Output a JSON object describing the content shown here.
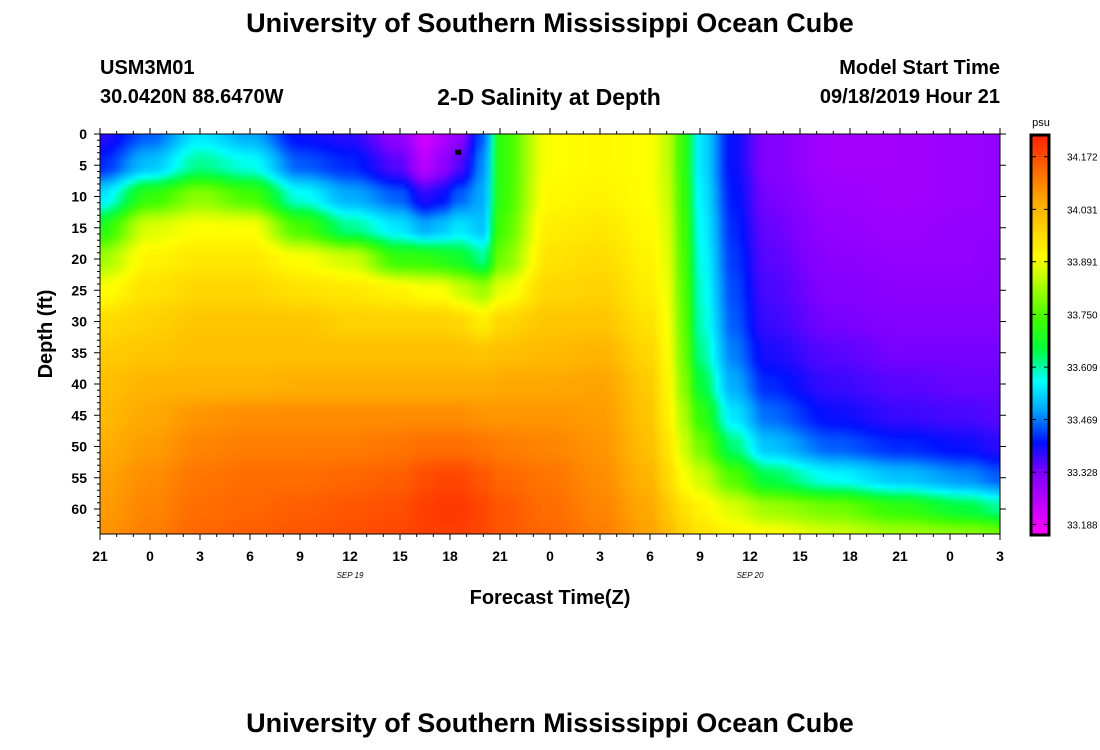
{
  "page": {
    "title_top": "University of Southern Mississippi Ocean Cube",
    "title_bottom": "University of Southern Mississippi Ocean Cube",
    "station_id": "USM3M01",
    "coordinates": "30.0420N 88.6470W",
    "plot_title": "2-D Salinity at Depth",
    "model_start_label": "Model Start Time",
    "model_start_value": "09/18/2019 Hour 21"
  },
  "chart_data": {
    "type": "heatmap",
    "title": "2-D Salinity at Depth",
    "xlabel": "Forecast Time(Z)",
    "ylabel": "Depth (ft)",
    "x_tick_labels": [
      "21",
      "0",
      "3",
      "6",
      "9",
      "12",
      "15",
      "18",
      "21",
      "0",
      "3",
      "6",
      "9",
      "12",
      "15",
      "18",
      "21",
      "0",
      "3"
    ],
    "x_hours_range": [
      0,
      54
    ],
    "date_labels": [
      {
        "text": "SEP 19",
        "hour": 15
      },
      {
        "text": "SEP 20",
        "hour": 39
      }
    ],
    "y_tick_labels": [
      "0",
      "5",
      "10",
      "15",
      "20",
      "25",
      "30",
      "35",
      "40",
      "45",
      "50",
      "55",
      "60"
    ],
    "y_range_ft": [
      0,
      64
    ],
    "colorbar": {
      "unit": "psu",
      "tick_labels": [
        "34.172",
        "34.031",
        "33.891",
        "33.750",
        "33.609",
        "33.469",
        "33.328",
        "33.188"
      ],
      "range": [
        33.16,
        34.23
      ],
      "colors": [
        "#ff00ff",
        "#c000ff",
        "#8000ff",
        "#0010ff",
        "#00a0ff",
        "#00ffff",
        "#00ff40",
        "#40ff00",
        "#a0ff00",
        "#ffff00",
        "#ffd000",
        "#ffa000",
        "#ff6000",
        "#ff2000"
      ]
    },
    "marker": {
      "hour": 21.5,
      "depth_ft": 3
    },
    "profiles": {
      "hours": [
        0,
        3,
        6,
        9,
        12,
        15,
        18,
        19.5,
        20.5,
        21.5,
        23,
        24,
        27,
        30,
        33,
        34,
        35,
        36,
        38,
        40,
        44,
        48,
        52,
        54
      ],
      "depth_nodes": [
        0,
        5,
        10,
        15,
        20,
        25,
        30,
        35,
        40,
        45,
        50,
        55,
        60,
        64
      ],
      "salinity": [
        [
          33.38,
          33.42,
          33.55,
          33.7,
          33.82,
          33.9,
          33.96,
          33.99,
          34.01,
          34.02,
          34.04,
          34.06,
          34.07,
          34.08
        ],
        [
          33.45,
          33.52,
          33.72,
          33.87,
          33.92,
          33.95,
          33.98,
          34.0,
          34.03,
          34.05,
          34.07,
          34.09,
          34.1,
          34.11
        ],
        [
          33.55,
          33.62,
          33.8,
          33.9,
          33.94,
          33.97,
          34.0,
          34.01,
          34.03,
          34.08,
          34.1,
          34.12,
          34.13,
          34.14
        ],
        [
          33.5,
          33.58,
          33.74,
          33.9,
          33.94,
          33.97,
          34.0,
          34.01,
          34.03,
          34.09,
          34.11,
          34.13,
          34.14,
          34.15
        ],
        [
          33.4,
          33.45,
          33.58,
          33.74,
          33.9,
          33.95,
          34.0,
          34.01,
          34.04,
          34.09,
          34.11,
          34.13,
          34.15,
          34.16
        ],
        [
          33.38,
          33.42,
          33.5,
          33.62,
          33.86,
          33.94,
          33.98,
          34.01,
          34.04,
          34.09,
          34.11,
          34.14,
          34.16,
          34.17
        ],
        [
          33.3,
          33.35,
          33.45,
          33.55,
          33.72,
          33.92,
          33.98,
          34.01,
          34.04,
          34.09,
          34.12,
          34.15,
          34.17,
          34.18
        ],
        [
          33.22,
          33.25,
          33.38,
          33.5,
          33.72,
          33.9,
          33.98,
          34.01,
          34.04,
          34.09,
          34.13,
          34.17,
          34.19,
          34.19
        ],
        [
          33.26,
          33.3,
          33.4,
          33.52,
          33.7,
          33.9,
          33.98,
          34.01,
          34.04,
          34.09,
          34.13,
          34.18,
          34.2,
          34.19
        ],
        [
          33.3,
          33.35,
          33.45,
          33.55,
          33.68,
          33.86,
          33.97,
          34.01,
          34.04,
          34.09,
          34.13,
          34.18,
          34.2,
          34.19
        ],
        [
          33.45,
          33.48,
          33.5,
          33.52,
          33.62,
          33.82,
          33.93,
          34.0,
          34.04,
          34.08,
          34.12,
          34.16,
          34.18,
          34.18
        ],
        [
          33.72,
          33.72,
          33.72,
          33.74,
          33.78,
          33.88,
          33.97,
          34.01,
          34.05,
          34.08,
          34.11,
          34.14,
          34.16,
          34.16
        ],
        [
          33.9,
          33.9,
          33.91,
          33.93,
          33.95,
          33.97,
          34.0,
          34.02,
          34.05,
          34.08,
          34.1,
          34.12,
          34.13,
          34.14
        ],
        [
          33.91,
          33.91,
          33.92,
          33.94,
          33.96,
          33.98,
          34.0,
          34.03,
          34.06,
          34.07,
          34.08,
          34.09,
          34.1,
          34.11
        ],
        [
          33.9,
          33.9,
          33.9,
          33.91,
          33.92,
          33.93,
          33.95,
          33.97,
          33.99,
          34.0,
          34.01,
          34.03,
          34.05,
          34.06
        ],
        [
          33.85,
          33.85,
          33.86,
          33.87,
          33.88,
          33.89,
          33.9,
          33.91,
          33.92,
          33.93,
          33.95,
          33.97,
          34.0,
          34.02
        ],
        [
          33.72,
          33.72,
          33.73,
          33.74,
          33.75,
          33.76,
          33.77,
          33.78,
          33.8,
          33.83,
          33.86,
          33.9,
          33.95,
          33.98
        ],
        [
          33.55,
          33.55,
          33.56,
          33.57,
          33.58,
          33.59,
          33.6,
          33.62,
          33.66,
          33.72,
          33.78,
          33.86,
          33.92,
          33.95
        ],
        [
          33.4,
          33.4,
          33.41,
          33.42,
          33.43,
          33.44,
          33.45,
          33.47,
          33.5,
          33.55,
          33.63,
          33.75,
          33.87,
          33.92
        ],
        [
          33.32,
          33.32,
          33.33,
          33.34,
          33.35,
          33.36,
          33.37,
          33.39,
          33.42,
          33.46,
          33.52,
          33.65,
          33.82,
          33.9
        ],
        [
          33.28,
          33.28,
          33.29,
          33.3,
          33.31,
          33.32,
          33.33,
          33.35,
          33.37,
          33.4,
          33.45,
          33.57,
          33.78,
          33.86
        ],
        [
          33.28,
          33.28,
          33.28,
          33.29,
          33.3,
          33.31,
          33.32,
          33.33,
          33.35,
          33.37,
          33.42,
          33.52,
          33.72,
          33.82
        ],
        [
          33.29,
          33.29,
          33.29,
          33.3,
          33.3,
          33.31,
          33.32,
          33.33,
          33.34,
          33.36,
          33.4,
          33.48,
          33.66,
          33.8
        ],
        [
          33.3,
          33.3,
          33.3,
          33.3,
          33.31,
          33.31,
          33.32,
          33.33,
          33.34,
          33.35,
          33.38,
          33.45,
          33.62,
          33.78
        ]
      ]
    }
  }
}
